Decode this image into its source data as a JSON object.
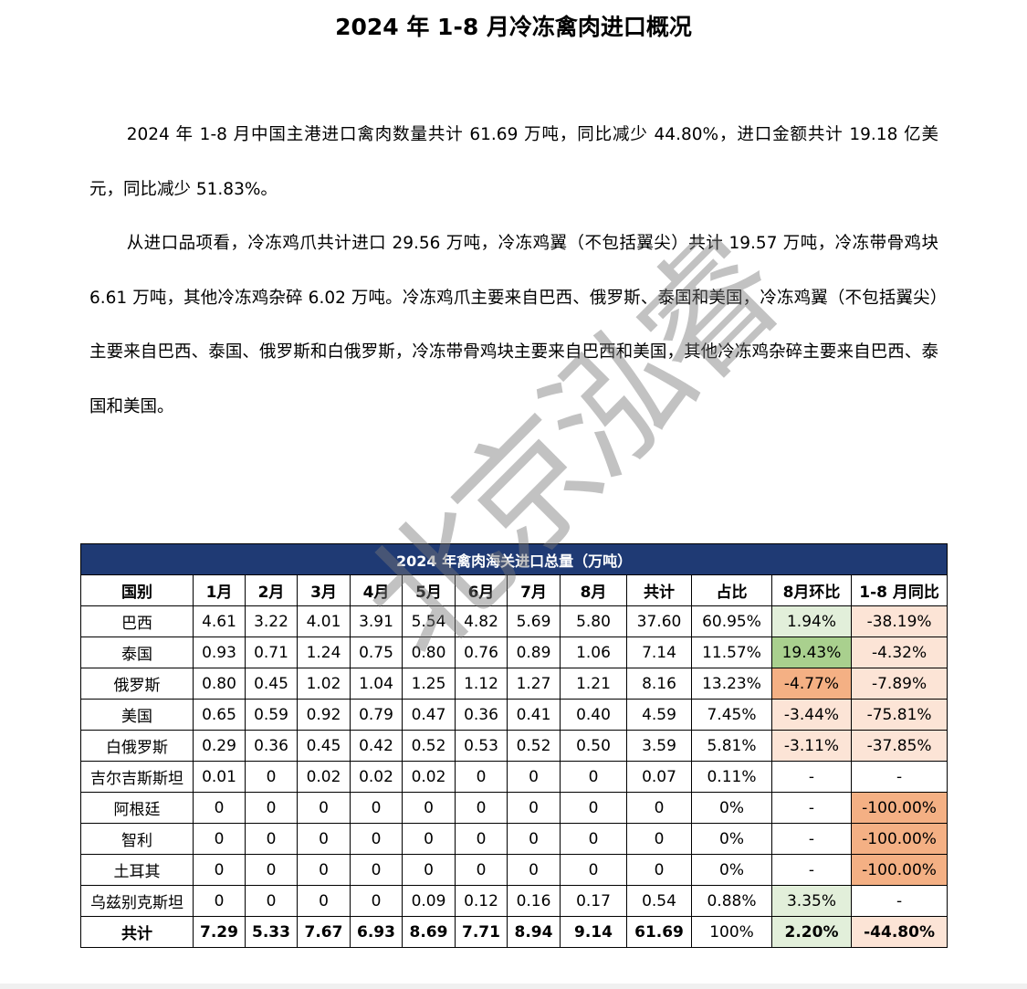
{
  "title": "2024 年 1-8 月冷冻禽肉进口概况",
  "paragraphs": [
    "2024 年 1-8 月中国主港进口禽肉数量共计 61.69 万吨，同比减少 44.80%，进口金额共计 19.18 亿美元，同比减少 51.83%。",
    "从进口品项看，冷冻鸡爪共计进口 29.56 万吨，冷冻鸡翼（不包括翼尖）共计 19.57 万吨，冷冻带骨鸡块 6.61 万吨，其他冷冻鸡杂碎 6.02 万吨。冷冻鸡爪主要来自巴西、俄罗斯、泰国和美国，冷冻鸡翼（不包括翼尖）主要来自巴西、泰国、俄罗斯和白俄罗斯，冷冻带骨鸡块主要来自巴西和美国，其他冷冻鸡杂碎主要来自巴西、泰国和美国。"
  ],
  "watermark": "北京泓睿",
  "table": {
    "caption": "2024 年禽肉海关进口总量（万吨）",
    "headers": [
      "国别",
      "1月",
      "2月",
      "3月",
      "4月",
      "5月",
      "6月",
      "7月",
      "8月",
      "共计",
      "占比",
      "8月环比",
      "1-8 月同比"
    ],
    "rows": [
      [
        "巴西",
        "4.61",
        "3.22",
        "4.01",
        "3.91",
        "5.54",
        "4.82",
        "5.69",
        "5.80",
        "37.60",
        "60.95%",
        "1.94%",
        "-38.19%"
      ],
      [
        "泰国",
        "0.93",
        "0.71",
        "1.24",
        "0.75",
        "0.80",
        "0.76",
        "0.89",
        "1.06",
        "7.14",
        "11.57%",
        "19.43%",
        "-4.32%"
      ],
      [
        "俄罗斯",
        "0.80",
        "0.45",
        "1.02",
        "1.04",
        "1.25",
        "1.12",
        "1.27",
        "1.21",
        "8.16",
        "13.23%",
        "-4.77%",
        "-7.89%"
      ],
      [
        "美国",
        "0.65",
        "0.59",
        "0.92",
        "0.79",
        "0.47",
        "0.36",
        "0.41",
        "0.40",
        "4.59",
        "7.45%",
        "-3.44%",
        "-75.81%"
      ],
      [
        "白俄罗斯",
        "0.29",
        "0.36",
        "0.45",
        "0.42",
        "0.52",
        "0.53",
        "0.52",
        "0.50",
        "3.59",
        "5.81%",
        "-3.11%",
        "-37.85%"
      ],
      [
        "吉尔吉斯斯坦",
        "0.01",
        "0",
        "0.02",
        "0.02",
        "0.02",
        "0",
        "0",
        "0",
        "0.07",
        "0.11%",
        "-",
        "-"
      ],
      [
        "阿根廷",
        "0",
        "0",
        "0",
        "0",
        "0",
        "0",
        "0",
        "0",
        "0",
        "0%",
        "-",
        "-100.00%"
      ],
      [
        "智利",
        "0",
        "0",
        "0",
        "0",
        "0",
        "0",
        "0",
        "0",
        "0",
        "0%",
        "-",
        "-100.00%"
      ],
      [
        "土耳其",
        "0",
        "0",
        "0",
        "0",
        "0",
        "0",
        "0",
        "0",
        "0",
        "0%",
        "-",
        "-100.00%"
      ],
      [
        "乌兹别克斯坦",
        "0",
        "0",
        "0",
        "0",
        "0.09",
        "0.12",
        "0.16",
        "0.17",
        "0.54",
        "0.88%",
        "3.35%",
        "-"
      ]
    ],
    "total": [
      "共计",
      "7.29",
      "5.33",
      "7.67",
      "6.93",
      "8.69",
      "7.71",
      "8.94",
      "9.14",
      "61.69",
      "100%",
      "2.20%",
      "-44.80%"
    ],
    "cell_colors": {
      "mom": [
        "lg",
        "g",
        "o",
        "lo",
        "lo",
        "",
        "",
        "",
        "",
        "lg"
      ],
      "yoy": [
        "lo",
        "lo",
        "lo",
        "lo",
        "lo",
        "",
        "o",
        "o",
        "o",
        ""
      ],
      "total_mom": "lg",
      "total_yoy": "lo"
    },
    "colors": {
      "header_bg": "#1f3a74",
      "light_green": "#e2efda",
      "green": "#a9d08e",
      "light_orange": "#fce4d6",
      "orange": "#f4b084"
    }
  }
}
